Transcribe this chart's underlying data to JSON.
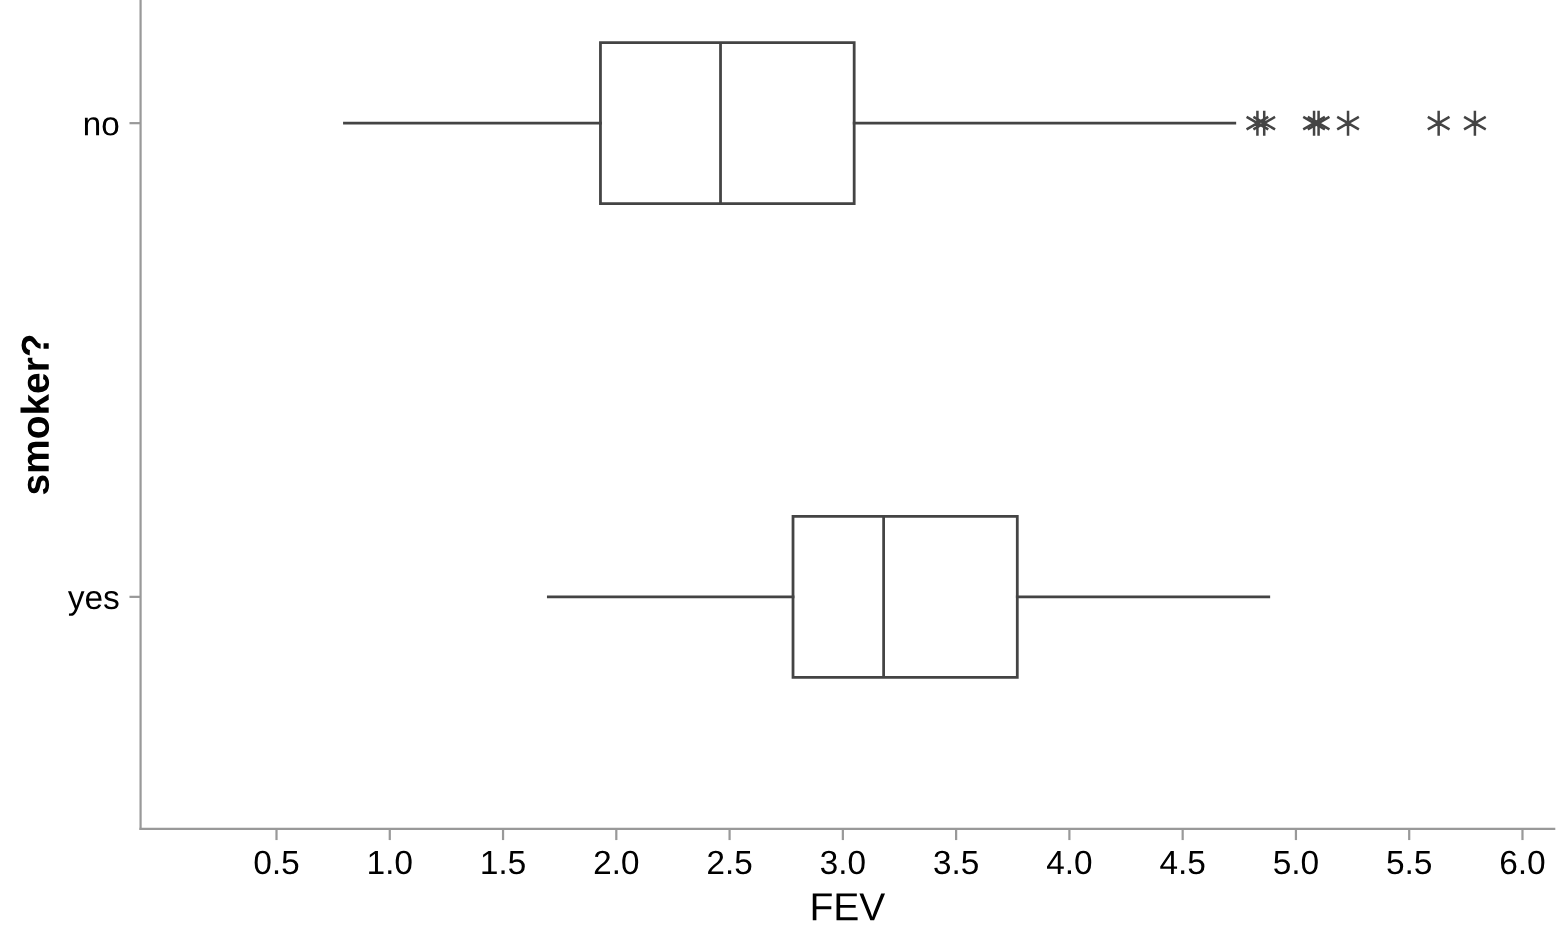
{
  "chart_data": {
    "type": "box",
    "orientation": "horizontal",
    "xlabel": "FEV",
    "ylabel": "smoker?",
    "categories": [
      "no",
      "yes"
    ],
    "boxes": [
      {
        "low": 0.8,
        "q1": 1.93,
        "median": 2.46,
        "q3": 3.05,
        "high": 4.73,
        "outliers": [
          4.83,
          4.86,
          5.08,
          5.1,
          5.23,
          5.63,
          5.79
        ]
      },
      {
        "low": 1.7,
        "q1": 2.78,
        "median": 3.18,
        "q3": 3.77,
        "high": 4.88
      }
    ],
    "xlim": [
      -0.1,
      6.14
    ],
    "xticks": [
      0.5,
      {
        "value": 1,
        "label": "1.0"
      },
      1.5,
      {
        "value": 2,
        "label": "2.0"
      },
      2.5,
      {
        "value": 3,
        "label": "3.0"
      },
      3.5,
      {
        "value": 4,
        "label": "4.0"
      },
      4.5,
      {
        "value": 5,
        "label": "5.0"
      },
      5.5,
      {
        "value": 6,
        "label": "6.0"
      }
    ],
    "color": "#ffffff",
    "grid": false,
    "legend": false
  }
}
